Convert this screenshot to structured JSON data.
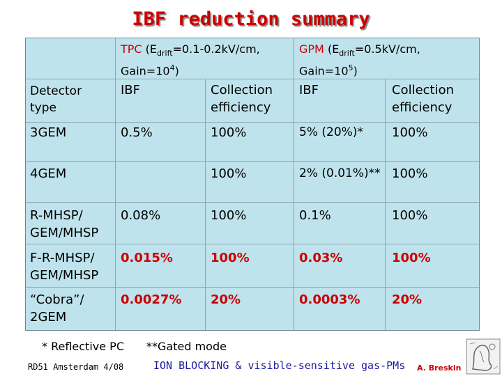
{
  "title": "IBF reduction summary",
  "header": {
    "tpc_label": "TPC",
    "tpc_conditions": " (E",
    "tpc_sub": "drift",
    "tpc_rest": "=0.1-0.2kV/cm,",
    "tpc_gain": "Gain=10",
    "tpc_gain_exp": "4",
    "tpc_close": ")",
    "gpm_label": "GPM",
    "gpm_conditions": " (E",
    "gpm_sub": "drift",
    "gpm_rest": "=0.5kV/cm,",
    "gpm_gain": "Gain=10",
    "gpm_gain_exp": "5",
    "gpm_close": ")"
  },
  "columns": {
    "detector_type": "Detector type",
    "ibf": "IBF",
    "collection_efficiency": "Collection efficiency"
  },
  "rows": [
    {
      "detector": "3GEM",
      "tpc_ibf": "0.5%",
      "tpc_ce": "100%",
      "gpm_ibf": "5% (20%)*",
      "gpm_ce": "100%"
    },
    {
      "detector": "4GEM",
      "tpc_ibf": "",
      "tpc_ce": "100%",
      "gpm_ibf": "2% (0.01%)**",
      "gpm_ce": "100%"
    },
    {
      "detector": "R-MHSP/ GEM/MHSP",
      "tpc_ibf": "0.08%",
      "tpc_ce": "100%",
      "gpm_ibf": "0.1%",
      "gpm_ce": "100%"
    },
    {
      "detector": "F-R-MHSP/ GEM/MHSP",
      "tpc_ibf": "0.015%",
      "tpc_ce": "100%",
      "gpm_ibf": "0.03%",
      "gpm_ce": "100%"
    },
    {
      "detector": "“Cobra”/ 2GEM",
      "tpc_ibf": "0.0027%",
      "tpc_ce": "20%",
      "gpm_ibf": "0.0003%",
      "gpm_ce": "20%"
    }
  ],
  "footnotes": {
    "reflective": "* Reflective PC",
    "gated": "**Gated mode"
  },
  "footer": {
    "conference": "RD51 Amsterdam 4/08",
    "topic": "ION BLOCKING & visible-sensitive gas-PMs",
    "author": "A. Breskin"
  }
}
